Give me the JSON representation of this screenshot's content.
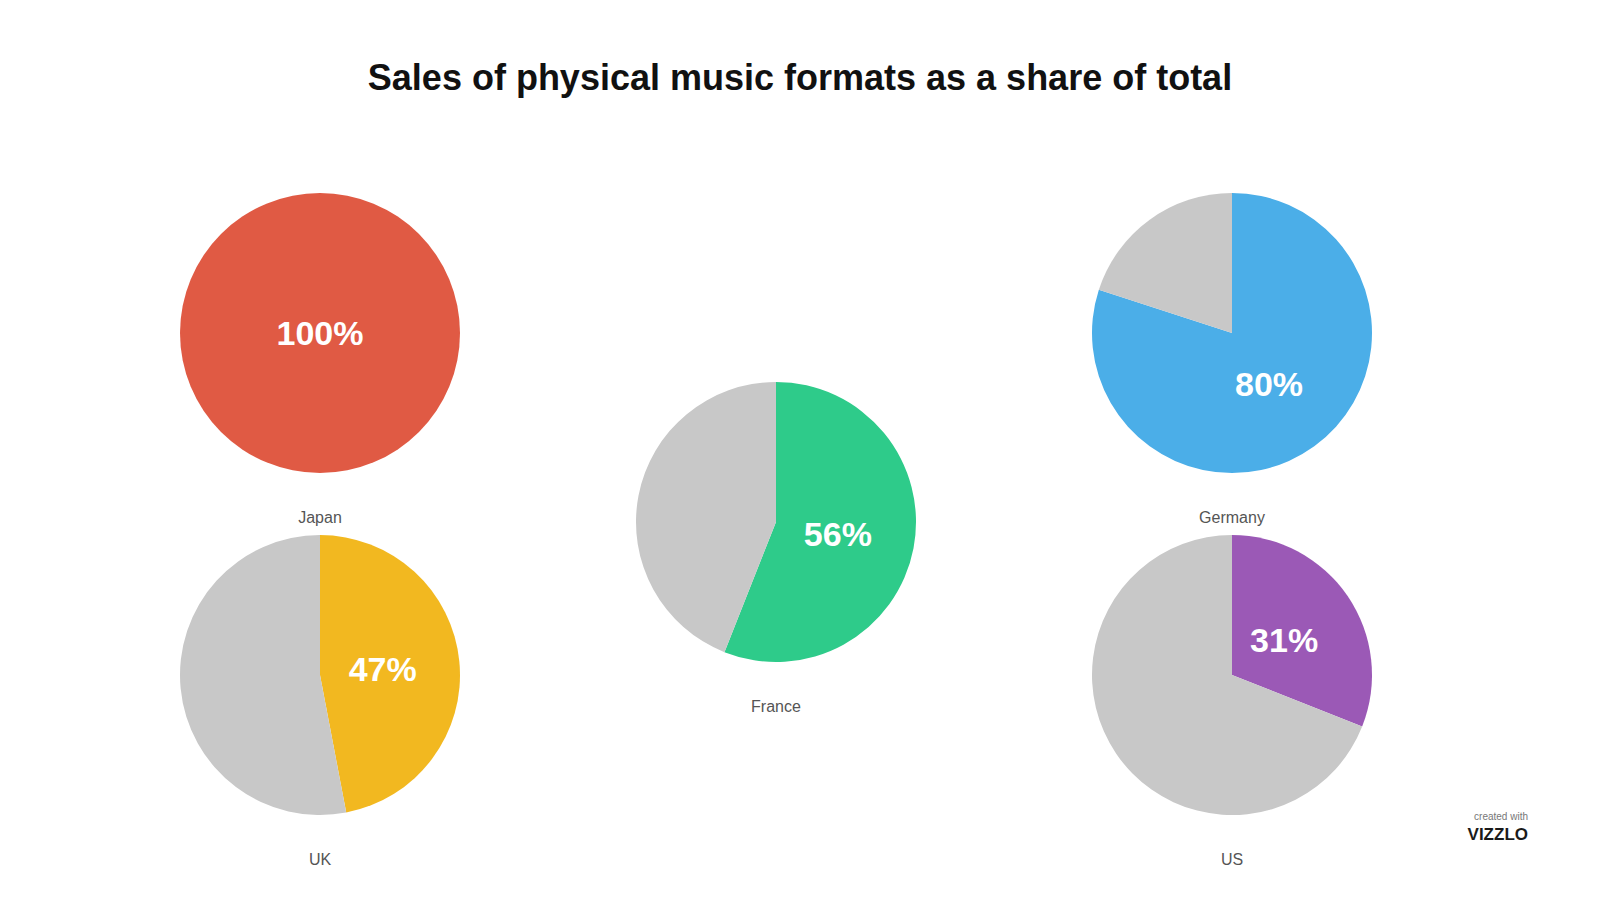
{
  "chart_data": {
    "type": "pie",
    "title": "Sales of physical music formats as a share of total",
    "data_labels": true,
    "series": [
      {
        "name": "Japan",
        "values": [
          100
        ],
        "value_labels": [
          "100%"
        ],
        "colors": [
          "#E05A44"
        ]
      },
      {
        "name": "Germany",
        "values": [
          80,
          20
        ],
        "value_labels": [
          "80%",
          null
        ],
        "colors": [
          "#4BAEE8",
          "#C8C8C8"
        ]
      },
      {
        "name": "France",
        "values": [
          56,
          44
        ],
        "value_labels": [
          "56%",
          null
        ],
        "colors": [
          "#2ECB8A",
          "#C8C8C8"
        ]
      },
      {
        "name": "UK",
        "values": [
          47,
          53
        ],
        "value_labels": [
          "47%",
          null
        ],
        "colors": [
          "#F2B820",
          "#C8C8C8"
        ]
      },
      {
        "name": "US",
        "values": [
          31,
          69
        ],
        "value_labels": [
          "31%",
          null
        ],
        "colors": [
          "#9B59B6",
          "#C8C8C8"
        ]
      }
    ],
    "annotations": [
      "created with",
      "VIZZLO"
    ]
  }
}
